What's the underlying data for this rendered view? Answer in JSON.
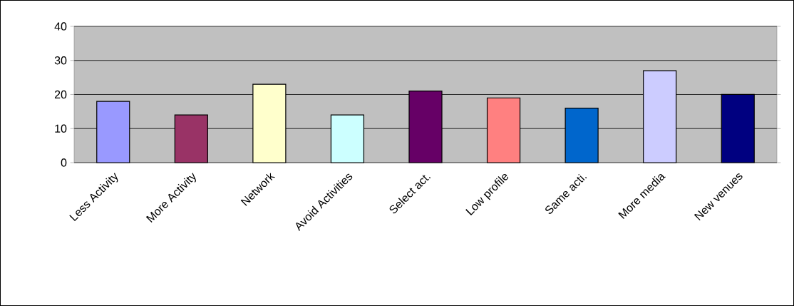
{
  "chart_data": {
    "type": "bar",
    "categories": [
      "Less Activity",
      "More Activity",
      "Network",
      "Avoid Activities",
      "Select act.",
      "Low profile",
      "Same acti.",
      "More media",
      "New venues"
    ],
    "values": [
      18,
      14,
      23,
      14,
      21,
      19,
      16,
      27,
      20
    ],
    "colors": [
      "#9999ff",
      "#993366",
      "#ffffcc",
      "#ccffff",
      "#660066",
      "#ff8080",
      "#0066cc",
      "#ccccff",
      "#000080"
    ],
    "ylim": [
      0,
      40
    ],
    "yticks": [
      0,
      10,
      20,
      30,
      40
    ],
    "grid": "y"
  }
}
